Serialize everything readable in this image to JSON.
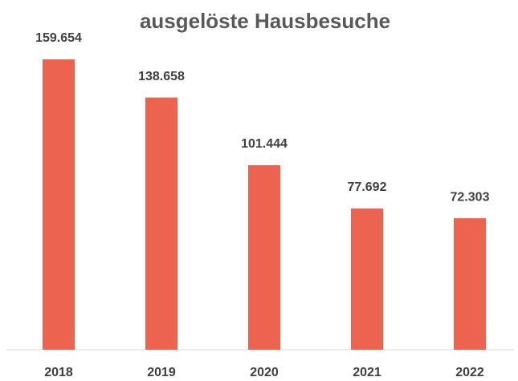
{
  "chart_data": {
    "type": "bar",
    "title": "ausgelöste Hausbesuche",
    "categories": [
      "2018",
      "2019",
      "2020",
      "2021",
      "2022"
    ],
    "values": [
      159654,
      138658,
      101444,
      77692,
      72303
    ],
    "value_labels": [
      "159.654",
      "138.658",
      "101.444",
      "77.692",
      "72.303"
    ],
    "color": "#ec6450"
  }
}
